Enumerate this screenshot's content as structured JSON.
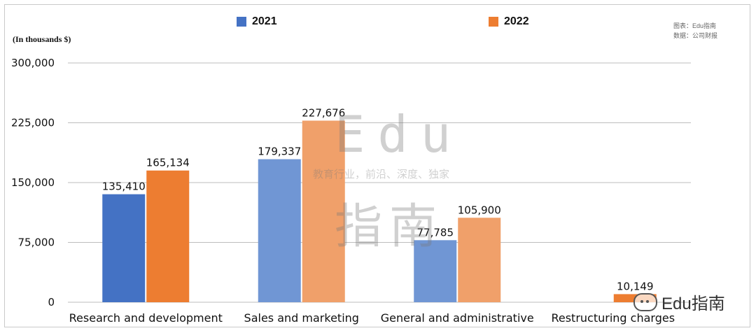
{
  "chart_data": {
    "type": "bar",
    "unit_label": "(In thousands $)",
    "categories": [
      "Research and development",
      "Sales and marketing",
      "General and administrative",
      "Restructuring charges"
    ],
    "series": [
      {
        "name": "2021",
        "values": [
          135410,
          179337,
          77785,
          0
        ],
        "labels": [
          "135,410",
          "179,337",
          "77,785",
          ""
        ]
      },
      {
        "name": "2022",
        "values": [
          165134,
          227676,
          105900,
          10149
        ],
        "labels": [
          "165,134",
          "227,676",
          "105,900",
          "10,149"
        ]
      }
    ],
    "ylim": [
      0,
      300000
    ],
    "yticks": [
      0,
      75000,
      150000,
      225000,
      300000
    ],
    "ytick_labels": [
      "0",
      "75,000",
      "150,000",
      "225,000",
      "300,000"
    ],
    "grid": true,
    "legend_position": "top"
  },
  "colors": {
    "series_2021_strong": "#4472c4",
    "series_2021_soft": "#7096d4",
    "series_2022_strong": "#ed7d31",
    "series_2022_soft": "#f0a06a",
    "grid": "#bdbdbd"
  },
  "source_note": [
    "图表：Edu指南",
    "数据：公司财报"
  ],
  "watermark": {
    "brand": "Edu",
    "tagline": "教育行业，前沿、深度、独家",
    "brand_cn": "指南"
  },
  "badge": {
    "icon": "wechat-icon",
    "text": "Edu指南"
  }
}
